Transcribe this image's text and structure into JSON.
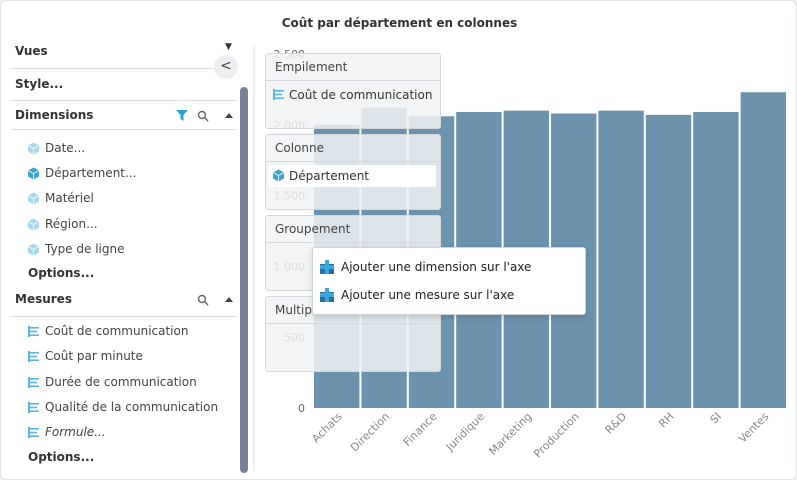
{
  "header": {
    "title": "Coût par département en colonnes"
  },
  "sidebar": {
    "views": "Vues",
    "style": "Style...",
    "dimensions": {
      "title": "Dimensions",
      "items": [
        "Date...",
        "Département...",
        "Matériel",
        "Région...",
        "Type de ligne"
      ],
      "options": "Options..."
    },
    "measures": {
      "title": "Mesures",
      "items": [
        "Coût de communication",
        "Coût par minute",
        "Durée de communication",
        "Qualité de la communication",
        "Formule..."
      ],
      "options": "Options..."
    }
  },
  "drop_zones": [
    {
      "title": "Empilement",
      "item": "Coût de communication"
    },
    {
      "title": "Colonne",
      "item": "Département"
    },
    {
      "title": "Groupement"
    },
    {
      "title": "Multiples"
    }
  ],
  "context_menu": [
    "Ajouter une dimension sur l'axe",
    "Ajouter une mesure sur l'axe"
  ],
  "chart_data": {
    "type": "bar",
    "color": "#6b93ad",
    "categories": [
      "Achats",
      "Direction",
      "Finance",
      "Juridique",
      "Marketing",
      "Production",
      "R&D",
      "RH",
      "SI",
      "Ventes"
    ],
    "values": [
      2000,
      2120,
      2060,
      2090,
      2100,
      2080,
      2100,
      2070,
      2090,
      2230
    ],
    "ylim": [
      0,
      2500
    ],
    "yticks": [
      0,
      500,
      {
        "value": 1000,
        "label": "1 000"
      },
      {
        "value": 1500,
        "label": "1 500"
      },
      {
        "value": 2000,
        "label": "2 000"
      },
      {
        "value": 2500,
        "label": "2 500"
      }
    ]
  }
}
